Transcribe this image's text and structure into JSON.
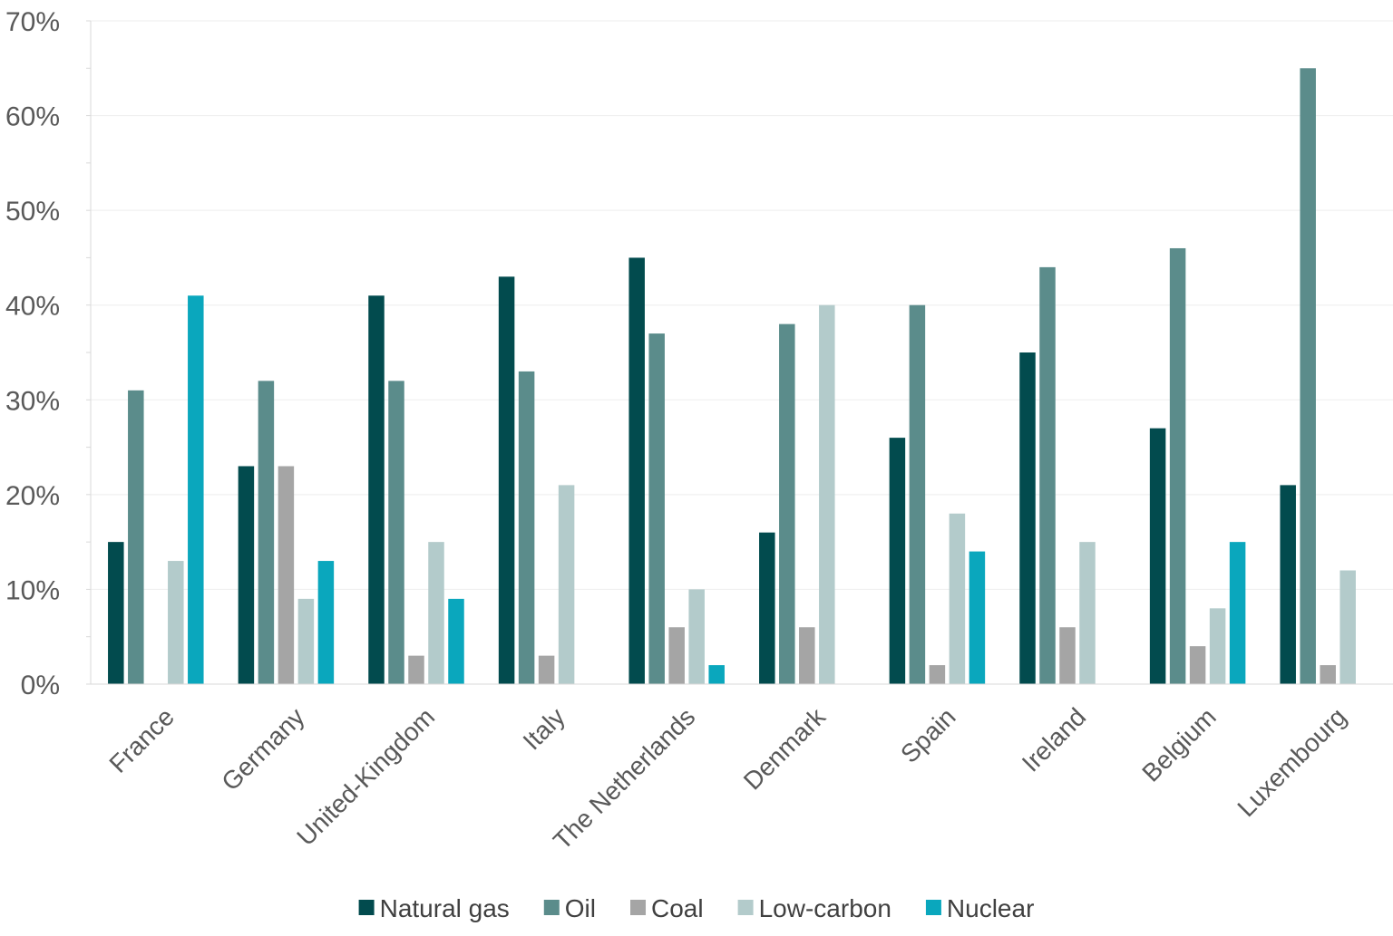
{
  "chart_data": {
    "type": "bar",
    "title": "",
    "xlabel": "",
    "ylabel": "",
    "ylim": [
      0,
      70
    ],
    "yticks": [
      0,
      10,
      20,
      30,
      40,
      50,
      60,
      70
    ],
    "ytick_labels": [
      "0%",
      "10%",
      "20%",
      "30%",
      "40%",
      "50%",
      "60%",
      "70%"
    ],
    "grid": true,
    "legend_position": "bottom",
    "categories": [
      "France",
      "Germany",
      "United-Kingdom",
      "Italy",
      "The Netherlands",
      "Denmark",
      "Spain",
      "Ireland",
      "Belgium",
      "Luxembourg"
    ],
    "series": [
      {
        "name": "Natural gas",
        "color": "#024b4e",
        "values": [
          15,
          23,
          41,
          43,
          45,
          16,
          26,
          35,
          27,
          21
        ]
      },
      {
        "name": "Oil",
        "color": "#5b8c8b",
        "values": [
          31,
          32,
          32,
          33,
          37,
          38,
          40,
          44,
          46,
          65
        ]
      },
      {
        "name": "Coal",
        "color": "#a5a5a5",
        "values": [
          0,
          23,
          3,
          3,
          6,
          6,
          2,
          6,
          4,
          2
        ]
      },
      {
        "name": "Low-carbon",
        "color": "#b3cbcb",
        "values": [
          13,
          9,
          15,
          21,
          10,
          40,
          18,
          15,
          8,
          12
        ]
      },
      {
        "name": "Nuclear",
        "color": "#0aa7bd",
        "values": [
          41,
          13,
          9,
          0,
          2,
          0,
          14,
          0,
          15,
          0
        ]
      }
    ]
  }
}
